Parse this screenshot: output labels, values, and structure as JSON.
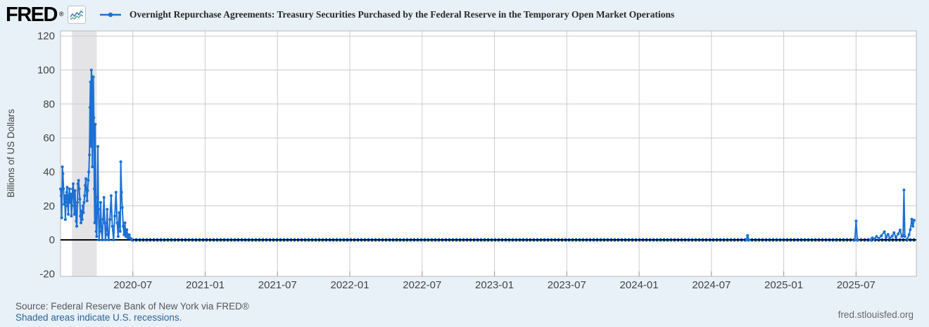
{
  "header": {
    "logo_text": "FRED",
    "logo_mark": "®",
    "series_title": "Overnight Repurchase Agreements: Treasury Securities Purchased by the Federal Reserve in the Temporary Open Market Operations"
  },
  "footer": {
    "source": "Source: Federal Reserve Bank of New York via FRED®",
    "recession_note": "Shaded areas indicate U.S. recessions.",
    "site": "fred.stlouisfed.org"
  },
  "chart_data": {
    "type": "line",
    "title": "Overnight Repurchase Agreements: Treasury Securities Purchased by the Federal Reserve in the Temporary Open Market Operations",
    "ylabel": "Billions of US Dollars",
    "ylim": [
      -21.5,
      123
    ],
    "y_ticks": [
      120,
      100,
      80,
      60,
      40,
      20,
      0,
      -20
    ],
    "x_start_month": "2020-01",
    "x_end_month": "2025-12",
    "x_total_months": 71,
    "x_ticks": [
      {
        "label": "2020-07",
        "t": 6
      },
      {
        "label": "2021-01",
        "t": 12
      },
      {
        "label": "2021-07",
        "t": 18
      },
      {
        "label": "2022-01",
        "t": 24
      },
      {
        "label": "2022-07",
        "t": 30
      },
      {
        "label": "2023-01",
        "t": 36
      },
      {
        "label": "2023-07",
        "t": 42
      },
      {
        "label": "2024-01",
        "t": 48
      },
      {
        "label": "2024-07",
        "t": 54
      },
      {
        "label": "2025-01",
        "t": 60
      },
      {
        "label": "2025-07",
        "t": 66
      }
    ],
    "grid": true,
    "legend_position": "top",
    "recession_band": {
      "t_start": 0.95,
      "t_end": 3.0
    },
    "colors": {
      "line": "#1c70d4",
      "grid": "#cccccc",
      "axis": "#b9b9b9",
      "tick": "#999999",
      "recession_band": "#e4e4e6",
      "zero_line": "#000000",
      "plot_bg": "#ffffff",
      "page_bg": "#e8f0f8",
      "tick_label": "#444444",
      "link": "#2a6496"
    },
    "series": [
      {
        "name": "Overnight Repurchase Agreements: Treasury Securities Purchased by the Federal Reserve in the Temporary Open Market Operations",
        "segments": [
          {
            "style": "solid",
            "points": [
              [
                0.0,
                30
              ],
              [
                0.05,
                26
              ],
              [
                0.1,
                13
              ],
              [
                0.15,
                43
              ],
              [
                0.2,
                39
              ],
              [
                0.25,
                30
              ],
              [
                0.3,
                21
              ],
              [
                0.35,
                26
              ],
              [
                0.4,
                12
              ],
              [
                0.45,
                22
              ],
              [
                0.5,
                28
              ],
              [
                0.55,
                31
              ],
              [
                0.6,
                20
              ],
              [
                0.65,
                15
              ],
              [
                0.7,
                26
              ],
              [
                0.75,
                30
              ],
              [
                0.8,
                22
              ],
              [
                0.85,
                27
              ],
              [
                0.9,
                14
              ],
              [
                0.95,
                20
              ],
              [
                1.0,
                30
              ],
              [
                1.05,
                33
              ],
              [
                1.1,
                25
              ],
              [
                1.15,
                15
              ],
              [
                1.2,
                29
              ],
              [
                1.25,
                20
              ],
              [
                1.3,
                11
              ],
              [
                1.35,
                8
              ],
              [
                1.4,
                22
              ],
              [
                1.45,
                33
              ],
              [
                1.5,
                35
              ],
              [
                1.55,
                30
              ],
              [
                1.6,
                24
              ],
              [
                1.65,
                14
              ],
              [
                1.7,
                10
              ],
              [
                1.75,
                17
              ],
              [
                1.8,
                12
              ],
              [
                1.85,
                20
              ],
              [
                1.9,
                16
              ],
              [
                1.95,
                22
              ],
              [
                2.0,
                26
              ],
              [
                2.05,
                32
              ],
              [
                2.1,
                36
              ],
              [
                2.15,
                30
              ],
              [
                2.2,
                23
              ],
              [
                2.25,
                29
              ],
              [
                2.3,
                35
              ],
              [
                2.35,
                40
              ],
              [
                2.4,
                50
              ],
              [
                2.44,
                78
              ],
              [
                2.48,
                93
              ],
              [
                2.52,
                55
              ],
              [
                2.56,
                100
              ],
              [
                2.6,
                96
              ],
              [
                2.64,
                43
              ],
              [
                2.68,
                88
              ],
              [
                2.72,
                96
              ],
              [
                2.76,
                72
              ],
              [
                2.8,
                30
              ],
              [
                2.84,
                10
              ],
              [
                2.88,
                68
              ],
              [
                2.92,
                25
              ],
              [
                2.96,
                5
              ],
              [
                3.0,
                2
              ],
              [
                3.05,
                20
              ],
              [
                3.1,
                55
              ],
              [
                3.15,
                18
              ],
              [
                3.2,
                0
              ],
              [
                3.27,
                8
              ],
              [
                3.33,
                22
              ],
              [
                3.4,
                5
              ],
              [
                3.47,
                0
              ],
              [
                3.53,
                12
              ],
              [
                3.6,
                25
              ],
              [
                3.67,
                10
              ],
              [
                3.73,
                0
              ],
              [
                3.8,
                6
              ],
              [
                3.87,
                18
              ],
              [
                3.93,
                3
              ],
              [
                4.0,
                0
              ],
              [
                4.1,
                12
              ],
              [
                4.2,
                26
              ],
              [
                4.3,
                8
              ],
              [
                4.4,
                0
              ],
              [
                4.5,
                14
              ],
              [
                4.6,
                28
              ],
              [
                4.7,
                10
              ],
              [
                4.78,
                2
              ],
              [
                4.87,
                16
              ],
              [
                4.95,
                5
              ],
              [
                5.0,
                46
              ],
              [
                5.06,
                28
              ],
              [
                5.12,
                19
              ],
              [
                5.2,
                8
              ],
              [
                5.27,
                3
              ],
              [
                5.34,
                10
              ],
              [
                5.42,
                2
              ],
              [
                5.5,
                6
              ],
              [
                5.6,
                1
              ],
              [
                5.7,
                3
              ],
              [
                5.8,
                1
              ],
              [
                5.9,
                0
              ]
            ]
          },
          {
            "style": "dotted",
            "points": [
              [
                5.9,
                0
              ],
              [
                70.9,
                0
              ]
            ]
          },
          {
            "style": "solid",
            "points": [
              [
                56.9,
                0
              ],
              [
                57.0,
                2.6
              ],
              [
                57.1,
                0
              ]
            ]
          },
          {
            "style": "solid",
            "points": [
              [
                65.9,
                0
              ],
              [
                66.0,
                11.1
              ],
              [
                66.1,
                0
              ]
            ]
          },
          {
            "style": "solid",
            "points": [
              [
                67.2,
                0
              ],
              [
                67.35,
                1.2
              ],
              [
                67.5,
                0.5
              ],
              [
                67.7,
                2.0
              ],
              [
                67.9,
                0.8
              ],
              [
                68.1,
                2.4
              ],
              [
                68.35,
                4.8
              ],
              [
                68.5,
                1.5
              ],
              [
                68.65,
                3.2
              ],
              [
                68.8,
                1.0
              ],
              [
                69.0,
                2.2
              ],
              [
                69.15,
                4.2
              ],
              [
                69.3,
                1.5
              ],
              [
                69.5,
                3.5
              ],
              [
                69.65,
                5.8
              ],
              [
                69.8,
                2.0
              ]
            ]
          },
          {
            "style": "solid",
            "points": [
              [
                69.9,
                2.5
              ],
              [
                69.97,
                29.4
              ],
              [
                70.05,
                2.0
              ]
            ]
          },
          {
            "style": "solid",
            "points": [
              [
                70.25,
                0.5
              ],
              [
                70.4,
                3.0
              ],
              [
                70.5,
                6.0
              ],
              [
                70.62,
                12.2
              ],
              [
                70.72,
                8.0
              ],
              [
                70.82,
                11.5
              ]
            ]
          }
        ]
      }
    ]
  }
}
